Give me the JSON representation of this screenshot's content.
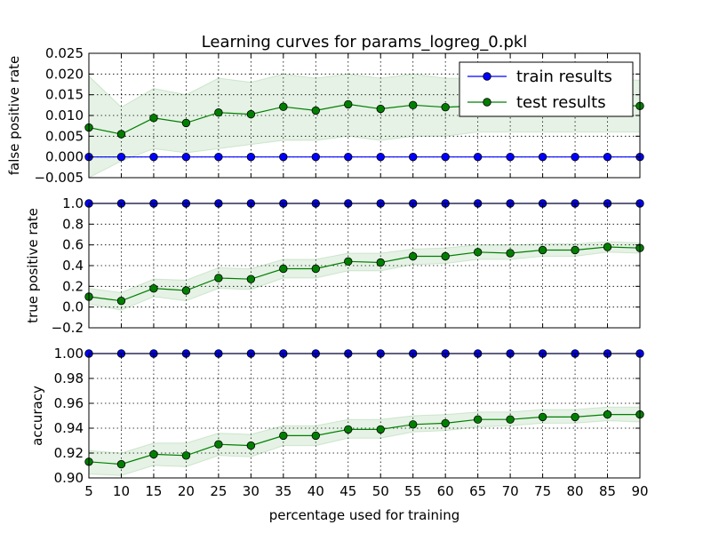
{
  "chart_data": {
    "type": "line",
    "title": "Learning curves for params_logreg_0.pkl",
    "xlabel": "percentage used for training",
    "x": [
      5,
      10,
      15,
      20,
      25,
      30,
      35,
      40,
      45,
      50,
      55,
      60,
      65,
      70,
      75,
      80,
      85,
      90
    ],
    "xticks": [
      "5",
      "10",
      "15",
      "20",
      "25",
      "30",
      "35",
      "40",
      "45",
      "50",
      "55",
      "60",
      "65",
      "70",
      "75",
      "80",
      "85",
      "90"
    ],
    "xlim": [
      5,
      90
    ],
    "grid": true,
    "legend": {
      "placement": "top-right",
      "entries": [
        "train results",
        "test results"
      ]
    },
    "colors": {
      "train": "#0000ff",
      "test": "#007f00",
      "band": "#007f00"
    },
    "panels": [
      {
        "ylabel": "false positive rate",
        "ylim": [
          -0.005,
          0.025
        ],
        "yticks": [
          "0.025",
          "0.020",
          "0.015",
          "0.010",
          "0.005",
          "0.000",
          "−0.005"
        ],
        "ytick_values": [
          0.025,
          0.02,
          0.015,
          0.01,
          0.005,
          0.0,
          -0.005
        ],
        "series": [
          {
            "name": "train results",
            "values": [
              0,
              0,
              0,
              0,
              0,
              0,
              0,
              0,
              0,
              0,
              0,
              0,
              0,
              0,
              0,
              0,
              0,
              0
            ]
          },
          {
            "name": "test results",
            "values": [
              0.0071,
              0.0055,
              0.0094,
              0.0082,
              0.0107,
              0.0103,
              0.0121,
              0.0112,
              0.0127,
              0.0116,
              0.0125,
              0.012,
              0.0123,
              0.0123,
              0.0125,
              0.0125,
              0.0125,
              0.0123
            ]
          }
        ],
        "band_lower": [
          -0.005,
          -0.001,
          0.002,
          0.001,
          0.002,
          0.003,
          0.004,
          0.004,
          0.005,
          0.004,
          0.005,
          0.005,
          0.006,
          0.006,
          0.006,
          0.006,
          0.006,
          0.006
        ],
        "band_upper": [
          0.0195,
          0.012,
          0.0165,
          0.015,
          0.019,
          0.018,
          0.02,
          0.019,
          0.02,
          0.019,
          0.02,
          0.019,
          0.019,
          0.019,
          0.019,
          0.019,
          0.019,
          0.0185
        ]
      },
      {
        "ylabel": "true positive rate",
        "ylim": [
          -0.2,
          1.0
        ],
        "yticks": [
          "1.0",
          "0.8",
          "0.6",
          "0.4",
          "0.2",
          "0.0",
          "−0.2"
        ],
        "ytick_values": [
          1.0,
          0.8,
          0.6,
          0.4,
          0.2,
          0.0,
          -0.2
        ],
        "series": [
          {
            "name": "train results",
            "values": [
              1,
              1,
              1,
              1,
              1,
              1,
              1,
              1,
              1,
              1,
              1,
              1,
              1,
              1,
              1,
              1,
              1,
              1
            ]
          },
          {
            "name": "test results",
            "values": [
              0.1,
              0.06,
              0.18,
              0.16,
              0.28,
              0.27,
              0.37,
              0.37,
              0.44,
              0.43,
              0.49,
              0.49,
              0.53,
              0.52,
              0.55,
              0.55,
              0.58,
              0.57
            ]
          }
        ],
        "band_lower": [
          0.03,
          -0.03,
          0.1,
          0.06,
          0.18,
          0.17,
          0.28,
          0.28,
          0.35,
          0.35,
          0.41,
          0.42,
          0.46,
          0.46,
          0.49,
          0.49,
          0.53,
          0.52
        ],
        "band_upper": [
          0.18,
          0.14,
          0.27,
          0.26,
          0.38,
          0.37,
          0.46,
          0.46,
          0.52,
          0.52,
          0.56,
          0.57,
          0.6,
          0.6,
          0.61,
          0.61,
          0.63,
          0.62
        ]
      },
      {
        "ylabel": "accuracy",
        "ylim": [
          0.9,
          1.0
        ],
        "yticks": [
          "1.00",
          "0.98",
          "0.96",
          "0.94",
          "0.92",
          "0.90"
        ],
        "ytick_values": [
          1.0,
          0.98,
          0.96,
          0.94,
          0.92,
          0.9
        ],
        "series": [
          {
            "name": "train results",
            "values": [
              1,
              1,
              1,
              1,
              1,
              1,
              1,
              1,
              1,
              1,
              1,
              1,
              1,
              1,
              1,
              1,
              1,
              1
            ]
          },
          {
            "name": "test results",
            "values": [
              0.913,
              0.911,
              0.919,
              0.918,
              0.927,
              0.926,
              0.934,
              0.934,
              0.939,
              0.939,
              0.943,
              0.944,
              0.947,
              0.947,
              0.949,
              0.949,
              0.951,
              0.951
            ]
          }
        ],
        "band_lower": [
          0.903,
          0.902,
          0.91,
          0.909,
          0.918,
          0.917,
          0.926,
          0.926,
          0.932,
          0.932,
          0.937,
          0.938,
          0.941,
          0.942,
          0.944,
          0.944,
          0.946,
          0.945
        ],
        "band_upper": [
          0.922,
          0.92,
          0.928,
          0.928,
          0.936,
          0.935,
          0.942,
          0.942,
          0.947,
          0.947,
          0.95,
          0.951,
          0.953,
          0.953,
          0.955,
          0.955,
          0.957,
          0.957
        ]
      }
    ]
  }
}
